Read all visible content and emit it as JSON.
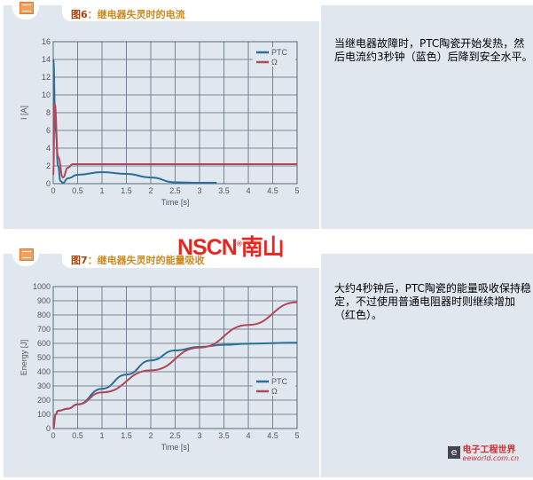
{
  "sections": [
    {
      "title_prefix": "图6",
      "title": "：继电器失灵时的电流",
      "description": "当继电器故障时，PTC陶瓷开始发热，然后电流约3秒钟（蓝色）后降到安全水平。"
    },
    {
      "title_prefix": "图7",
      "title": "：继电器失灵时的能量吸收",
      "description": "大约4秒钟后，PTC陶瓷的能量吸收保持稳定，不过使用普通电阻器时则继续增加（红色）。"
    }
  ],
  "watermark": {
    "logo": "NSCN",
    "logo_cn": "南山",
    "mark": "®"
  },
  "footer_logo": {
    "cn": "电子工程世界",
    "en": "eeworld.com.cn"
  },
  "colors": {
    "ptc": "#2a6e9a",
    "ohm": "#b0485a",
    "grid": "#5a6a78",
    "panel": "#e0e7ef",
    "logo": "#e8261e"
  },
  "chart_data": [
    {
      "type": "line",
      "title": "",
      "xlabel": "Time [s]",
      "ylabel": "I [A]",
      "xlim": [
        0,
        5
      ],
      "ylim": [
        0,
        16
      ],
      "grid": true,
      "legend": "top-right",
      "xticks": [
        "0",
        "0.5",
        "1",
        "1.5",
        "2",
        "2.5",
        "3",
        "3.5",
        "4",
        "4.5",
        "5"
      ],
      "yticks": [
        "0",
        "2",
        "4",
        "6",
        "8",
        "10",
        "12",
        "14",
        "16"
      ],
      "series": [
        {
          "name": "PTC",
          "color": "#2a6e9a",
          "x": [
            0,
            0.05,
            0.1,
            0.15,
            0.2,
            0.3,
            0.5,
            1,
            1.5,
            2,
            2.5,
            3,
            3.35
          ],
          "y": [
            14,
            6,
            2,
            0.3,
            0.1,
            0.6,
            1.0,
            1.3,
            1.1,
            0.7,
            0.15,
            0.1,
            0.1
          ]
        },
        {
          "name": "Ω",
          "color": "#b0485a",
          "x": [
            0,
            0.03,
            0.1,
            0.2,
            0.3,
            0.4,
            5
          ],
          "y": [
            1,
            9,
            3,
            0.7,
            1.8,
            2.2,
            2.2
          ]
        }
      ]
    },
    {
      "type": "line",
      "title": "",
      "xlabel": "Time [s]",
      "ylabel": "Energy [J]",
      "xlim": [
        0,
        5
      ],
      "ylim": [
        0,
        1000
      ],
      "grid": true,
      "legend": "bottom-right",
      "xticks": [
        "0",
        "0.5",
        "1",
        "1.5",
        "2",
        "2.5",
        "3",
        "3.5",
        "4",
        "4.5",
        "5"
      ],
      "yticks": [
        "0",
        "100",
        "200",
        "300",
        "400",
        "500",
        "600",
        "700",
        "800",
        "900",
        "1000"
      ],
      "series": [
        {
          "name": "PTC",
          "color": "#2a6e9a",
          "x": [
            0,
            0.05,
            0.1,
            0.3,
            0.5,
            1,
            1.5,
            2,
            2.5,
            3,
            3.5,
            4,
            5
          ],
          "y": [
            0,
            100,
            125,
            140,
            170,
            280,
            380,
            480,
            550,
            575,
            590,
            598,
            605
          ]
        },
        {
          "name": "Ω",
          "color": "#b0485a",
          "x": [
            0,
            0.05,
            0.1,
            0.3,
            0.5,
            1,
            2,
            3,
            4,
            5
          ],
          "y": [
            0,
            100,
            125,
            140,
            170,
            255,
            410,
            570,
            730,
            890
          ]
        }
      ]
    }
  ]
}
